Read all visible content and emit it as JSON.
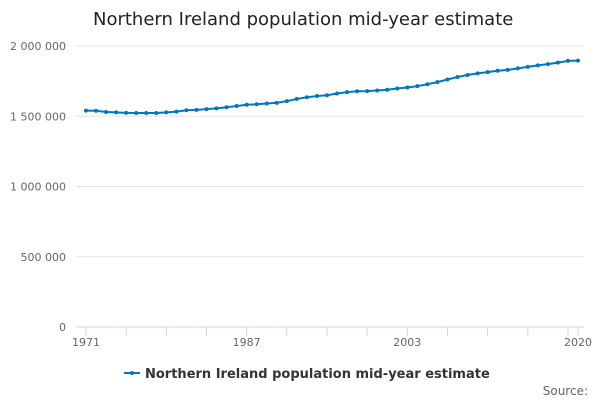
{
  "chart_data": {
    "type": "line",
    "title": "Northern Ireland population mid-year estimate",
    "xlabel": "",
    "ylabel": "",
    "xlim": [
      1971,
      2020
    ],
    "ylim": [
      0,
      2000000
    ],
    "x_tick_labels": [
      "1971",
      "1987",
      "2003",
      "2020"
    ],
    "y_tick_labels": [
      "0",
      "500 000",
      "1 000 000",
      "1 500 000",
      "2 000 000"
    ],
    "y_ticks": [
      0,
      500000,
      1000000,
      1500000,
      2000000
    ],
    "grid": "horizontal",
    "legend_position": "bottom",
    "color": "#0077c0",
    "series": [
      {
        "name": "Northern Ireland population mid-year estimate",
        "x": [
          1971,
          1972,
          1973,
          1974,
          1975,
          1976,
          1977,
          1978,
          1979,
          1980,
          1981,
          1982,
          1983,
          1984,
          1985,
          1986,
          1987,
          1988,
          1989,
          1990,
          1991,
          1992,
          1993,
          1994,
          1995,
          1996,
          1997,
          1998,
          1999,
          2000,
          2001,
          2002,
          2003,
          2004,
          2005,
          2006,
          2007,
          2008,
          2009,
          2010,
          2011,
          2012,
          2013,
          2014,
          2015,
          2016,
          2017,
          2018,
          2019,
          2020
        ],
        "values": [
          1540400,
          1539100,
          1530000,
          1527200,
          1523900,
          1523500,
          1523200,
          1523200,
          1528000,
          1532600,
          1543000,
          1545400,
          1551100,
          1556200,
          1564300,
          1573300,
          1582000,
          1585400,
          1590400,
          1595600,
          1607300,
          1623300,
          1635600,
          1643700,
          1649100,
          1661800,
          1671300,
          1677800,
          1679000,
          1682900,
          1688800,
          1697500,
          1704900,
          1714000,
          1727700,
          1743100,
          1761700,
          1779200,
          1793300,
          1804800,
          1814300,
          1823600,
          1829700,
          1840500,
          1851600,
          1862100,
          1870800,
          1881600,
          1893700,
          1895500
        ]
      }
    ],
    "source_label": "Source:"
  }
}
